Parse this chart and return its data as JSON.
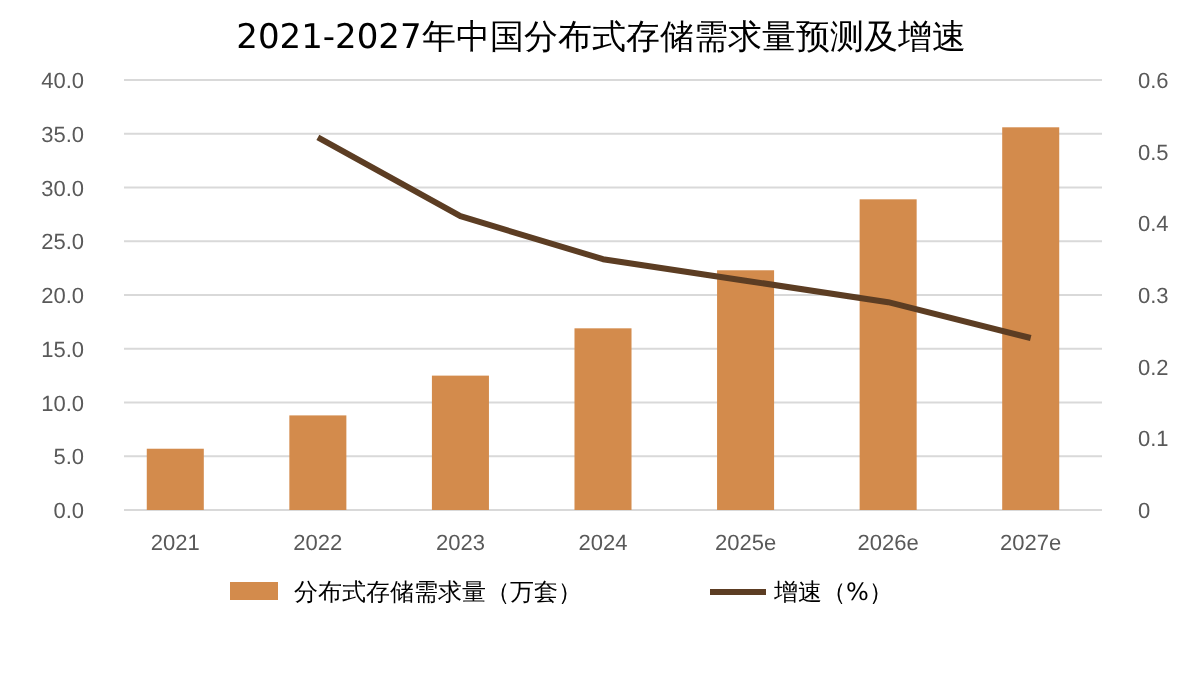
{
  "chart_data": {
    "type": "bar",
    "title": "2021-2027年中国分布式存储需求量预测及增速",
    "categories": [
      "2021",
      "2022",
      "2023",
      "2024",
      "2025e",
      "2026e",
      "2027e"
    ],
    "series": [
      {
        "name": "分布式存储需求量（万套）",
        "color": "#d38b4c",
        "values": [
          5.7,
          8.8,
          12.5,
          16.9,
          22.3,
          28.9,
          35.6
        ]
      },
      {
        "name": "增速（%）",
        "type": "line",
        "axis": "y2",
        "color": "#5c3d23",
        "values": [
          null,
          0.52,
          0.41,
          0.35,
          0.32,
          0.29,
          0.24
        ]
      }
    ],
    "ylim": [
      0,
      40
    ],
    "yticks": [
      {
        "value": 0,
        "label": "0.0"
      },
      {
        "value": 5,
        "label": "5.0"
      },
      {
        "value": 10,
        "label": "10.0"
      },
      {
        "value": 15,
        "label": "15.0"
      },
      {
        "value": 20,
        "label": "20.0"
      },
      {
        "value": 25,
        "label": "25.0"
      },
      {
        "value": 30,
        "label": "30.0"
      },
      {
        "value": 35,
        "label": "35.0"
      },
      {
        "value": 40,
        "label": "40.0"
      }
    ],
    "y2lim": [
      0,
      0.6
    ],
    "y2ticks": [
      0,
      0.1,
      0.2,
      0.3,
      0.4,
      0.5,
      0.6
    ],
    "grid": "y",
    "legend": "bottom",
    "marker": "none",
    "line_style": "solid"
  }
}
